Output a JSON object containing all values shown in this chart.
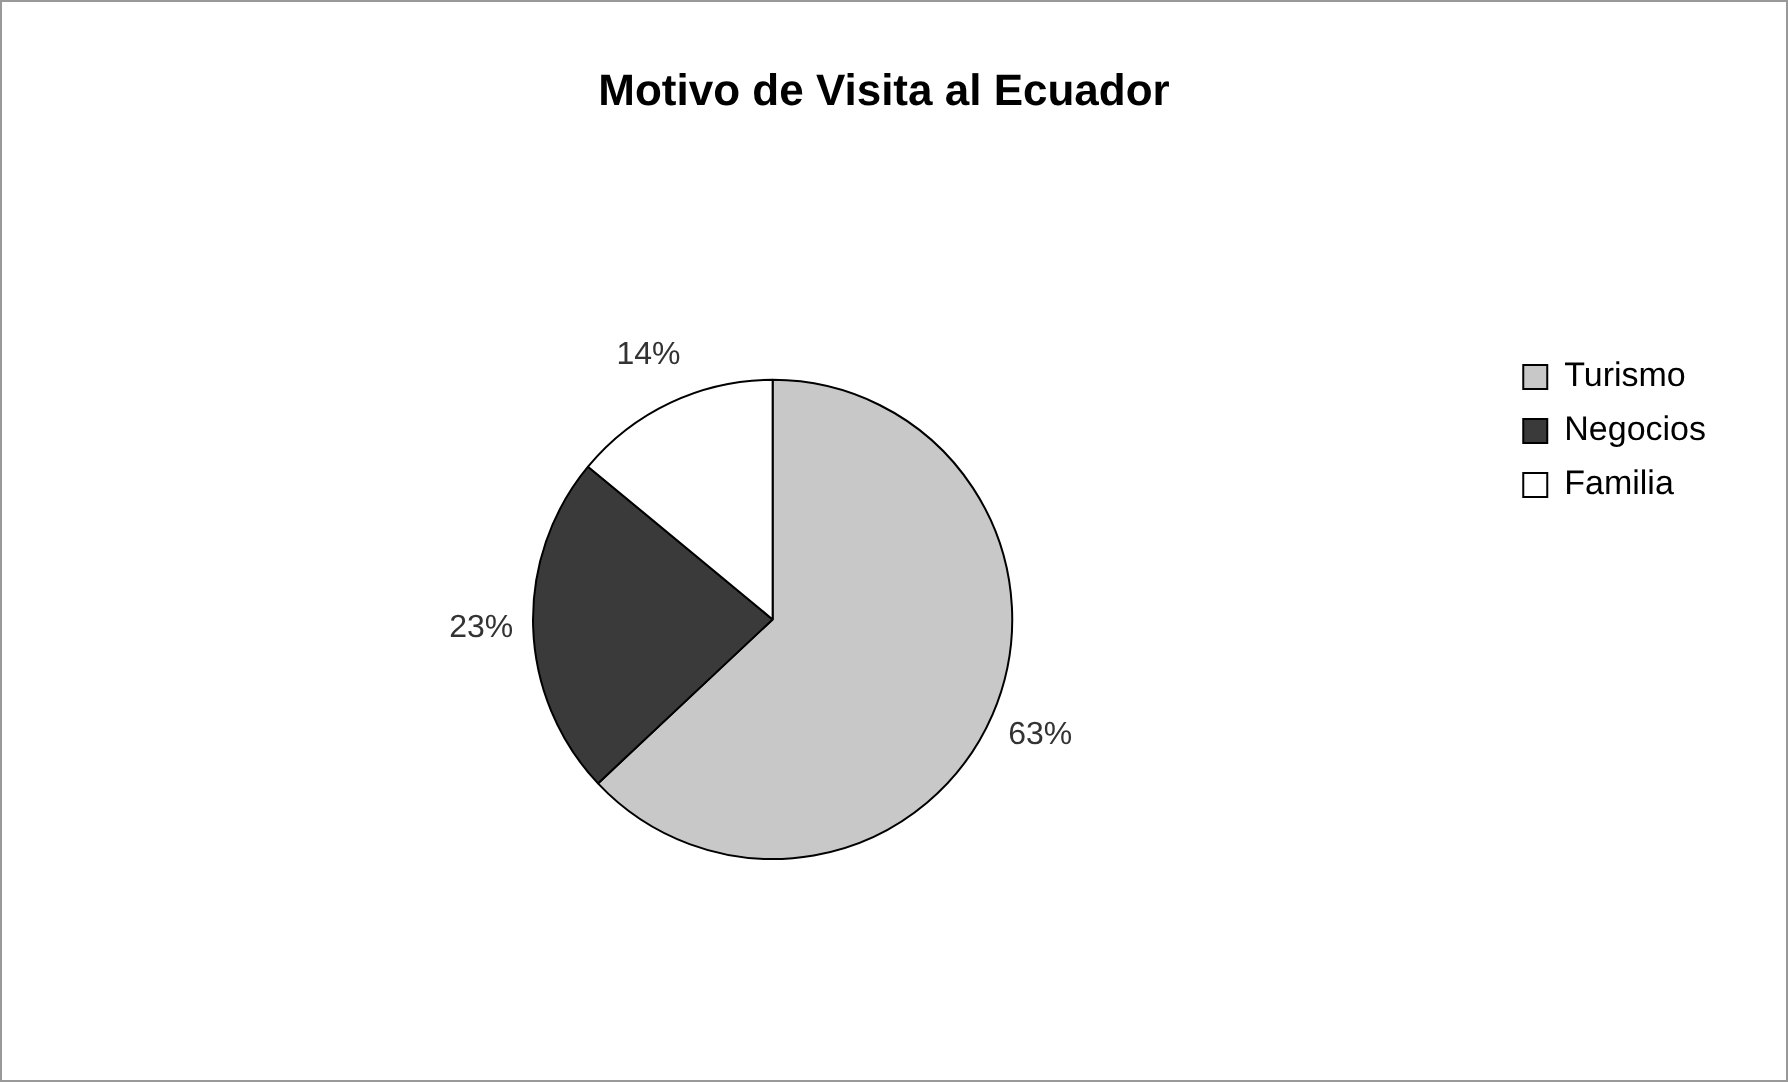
{
  "chart_data": {
    "type": "pie",
    "title": "Motivo de Visita al Ecuador",
    "categories": [
      "Turismo",
      "Negocios",
      "Familia"
    ],
    "values": [
      63,
      23,
      14
    ],
    "colors": [
      "#c8c8c8",
      "#3a3a3a",
      "#ffffff"
    ],
    "value_labels": [
      "63%",
      "23%",
      "14%"
    ],
    "legend": "right"
  }
}
